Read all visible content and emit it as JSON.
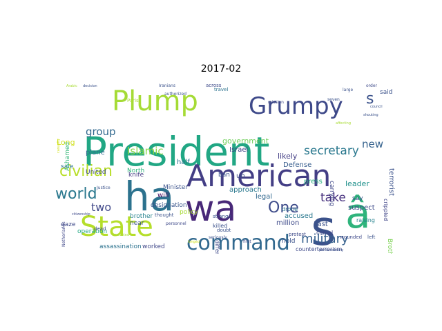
{
  "title": "2017-02",
  "cloud_words": [
    {
      "text": "President",
      "color": "#21a784",
      "size": 58
    },
    {
      "text": "American",
      "color": "#433e85",
      "size": 44
    },
    {
      "text": "Plump",
      "color": "#a5db36",
      "size": 40
    },
    {
      "text": "Grumpy",
      "color": "#3e4989",
      "size": 34
    },
    {
      "text": "ha",
      "color": "#2c728e",
      "size": 58
    },
    {
      "text": "wa",
      "color": "#482878",
      "size": 52
    },
    {
      "text": "State",
      "color": "#b5de2b",
      "size": 40
    },
    {
      "text": "command",
      "color": "#31688e",
      "size": 30
    },
    {
      "text": "s",
      "color": "#3b528b",
      "size": 70
    },
    {
      "text": "â",
      "color": "#2fb47c",
      "size": 60
    },
    {
      "text": "civilian",
      "color": "#b8de29",
      "size": 22
    },
    {
      "text": "world",
      "color": "#2a788e",
      "size": 22
    },
    {
      "text": "One",
      "color": "#3e4c8a",
      "size": 22
    },
    {
      "text": "military",
      "color": "#35608d",
      "size": 18
    },
    {
      "text": "secretary",
      "color": "#2a788e",
      "size": 17
    },
    {
      "text": "take",
      "color": "#46307e",
      "size": 17
    },
    {
      "text": "Islamic",
      "color": "#89d548",
      "size": 15
    },
    {
      "text": "group",
      "color": "#31688e",
      "size": 15
    },
    {
      "text": "new",
      "color": "#34618d",
      "size": 15
    },
    {
      "text": "two",
      "color": "#3f4788",
      "size": 16
    },
    {
      "text": "s",
      "color": "#3b528b",
      "size": 22
    },
    {
      "text": "Long",
      "color": "#d0e11c",
      "size": 11
    },
    {
      "text": "government",
      "color": "#6ece58",
      "size": 11
    },
    {
      "text": "Israel",
      "color": "#3f4788",
      "size": 10
    },
    {
      "text": "likely",
      "color": "#433e85",
      "size": 11
    },
    {
      "text": "Defense",
      "color": "#365d8d",
      "size": 10
    },
    {
      "text": "terrorist",
      "color": "#3b528b",
      "size": 10
    },
    {
      "text": "plane",
      "color": "#31688e",
      "size": 10
    },
    {
      "text": "half",
      "color": "#2c728e",
      "size": 10
    },
    {
      "text": "knife",
      "color": "#443a83",
      "size": 9
    },
    {
      "text": "United",
      "color": "#3e4a89",
      "size": 9
    },
    {
      "text": "North",
      "color": "#2fb47c",
      "size": 9
    },
    {
      "text": "sale",
      "color": "#2c728e",
      "size": 9
    },
    {
      "text": "Ashamed",
      "color": "#35b779",
      "size": 9
    },
    {
      "text": "Minister",
      "color": "#3b528b",
      "size": 9
    },
    {
      "text": "will",
      "color": "#471164",
      "size": 10
    },
    {
      "text": "legal",
      "color": "#31688e",
      "size": 10
    },
    {
      "text": "approach",
      "color": "#2a788e",
      "size": 10
    },
    {
      "text": "ban",
      "color": "#3b528b",
      "size": 9
    },
    {
      "text": "un",
      "color": "#3e4989",
      "size": 10
    },
    {
      "text": "press",
      "color": "#29af7f",
      "size": 10
    },
    {
      "text": "carrying",
      "color": "#3f4788",
      "size": 9
    },
    {
      "text": "leader",
      "color": "#21918c",
      "size": 11
    },
    {
      "text": "say",
      "color": "#3b528b",
      "size": 9
    },
    {
      "text": "suspect",
      "color": "#3e4a89",
      "size": 10
    },
    {
      "text": "crippled",
      "color": "#404688",
      "size": 8
    },
    {
      "text": "accused",
      "color": "#2a788e",
      "size": 10
    },
    {
      "text": "designation",
      "color": "#39568c",
      "size": 9
    },
    {
      "text": "policy",
      "color": "#a8db34",
      "size": 9
    },
    {
      "text": "brother",
      "color": "#26828e",
      "size": 9
    },
    {
      "text": "near",
      "color": "#3b528b",
      "size": 9
    },
    {
      "text": "gaze",
      "color": "#3e4989",
      "size": 9
    },
    {
      "text": "operation",
      "color": "#22a884",
      "size": 9
    },
    {
      "text": "assassination",
      "color": "#2c728e",
      "size": 9
    },
    {
      "text": "worked",
      "color": "#3f4788",
      "size": 9
    },
    {
      "text": "million",
      "color": "#3e4a89",
      "size": 10
    },
    {
      "text": "Last",
      "color": "#3b528b",
      "size": 10
    },
    {
      "text": "hold",
      "color": "#3b528b",
      "size": 9
    },
    {
      "text": "counterterrorism",
      "color": "#3e4a89",
      "size": 8
    },
    {
      "text": "Brotherhood",
      "color": "#7ad151",
      "size": 9
    },
    {
      "text": "raising",
      "color": "#26828e",
      "size": 8
    },
    {
      "text": "camel",
      "color": "#3f4788",
      "size": 8
    },
    {
      "text": "killed",
      "color": "#3b528b",
      "size": 8
    },
    {
      "text": "different",
      "color": "#3e4989",
      "size": 8
    },
    {
      "text": "drone",
      "color": "#2c728e",
      "size": 8
    },
    {
      "text": "said",
      "color": "#3b528b",
      "size": 9
    },
    {
      "text": "Netherlands",
      "color": "#3f4788",
      "size": 6
    },
    {
      "text": "protest",
      "color": "#3e4a89",
      "size": 7
    },
    {
      "text": "strange",
      "color": "#3b528b",
      "size": 7
    },
    {
      "text": "doubt",
      "color": "#3b528b",
      "size": 7
    },
    {
      "text": "dead",
      "color": "#3e4989",
      "size": 7
    },
    {
      "text": "Iranians",
      "color": "#3b528b",
      "size": 6
    },
    {
      "text": "across",
      "color": "#3e4a89",
      "size": 7
    },
    {
      "text": "travel",
      "color": "#2c728e",
      "size": 7
    },
    {
      "text": "authorized",
      "color": "#3b528b",
      "size": 6
    },
    {
      "text": "Paris",
      "color": "#a8db34",
      "size": 7
    },
    {
      "text": "mission",
      "color": "#3e4989",
      "size": 6
    },
    {
      "text": "seven",
      "color": "#3b528b",
      "size": 6
    },
    {
      "text": "order",
      "color": "#3e4a89",
      "size": 6
    },
    {
      "text": "large",
      "color": "#3b528b",
      "size": 6
    },
    {
      "text": "thought",
      "color": "#3b528b",
      "size": 7
    },
    {
      "text": "personnel",
      "color": "#3e4989",
      "size": 6
    },
    {
      "text": "Justice",
      "color": "#3b528b",
      "size": 6
    },
    {
      "text": "first",
      "color": "#3e4a89",
      "size": 6
    },
    {
      "text": "seriously",
      "color": "#3b528b",
      "size": 6
    },
    {
      "text": "wounded",
      "color": "#3e4989",
      "size": 7
    },
    {
      "text": "left",
      "color": "#3b528b",
      "size": 7
    },
    {
      "text": "Arabic",
      "color": "#a8db34",
      "size": 5
    },
    {
      "text": "decision",
      "color": "#3b528b",
      "size": 5
    },
    {
      "text": "executed",
      "color": "#a8db34",
      "size": 5
    },
    {
      "text": "casualty",
      "color": "#d0e11c",
      "size": 5
    },
    {
      "text": "parliamentary",
      "color": "#3b528b",
      "size": 5
    },
    {
      "text": "longed",
      "color": "#d0e11c",
      "size": 5
    },
    {
      "text": "citizenship",
      "color": "#3e4989",
      "size": 5
    },
    {
      "text": "council",
      "color": "#3b528b",
      "size": 5
    },
    {
      "text": "affecting",
      "color": "#a8db34",
      "size": 5
    },
    {
      "text": "shouting",
      "color": "#3b528b",
      "size": 5
    }
  ]
}
